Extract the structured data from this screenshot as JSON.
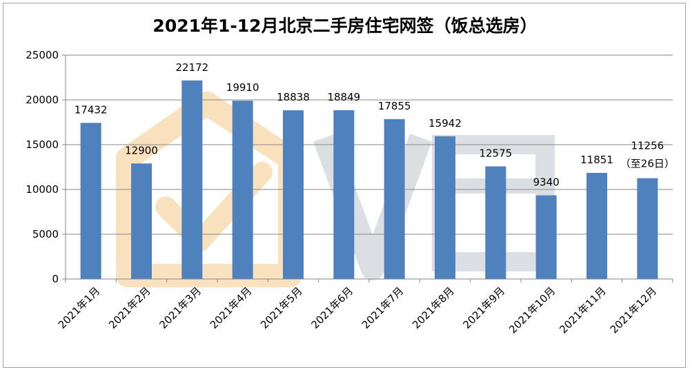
{
  "chart_data": {
    "type": "bar",
    "title": "2021年1-12月北京二手房住宅网签（饭总选房）",
    "categories": [
      "2021年1月",
      "2021年2月",
      "2021年3月",
      "2021年4月",
      "2021年5月",
      "2021年6月",
      "2021年7月",
      "2021年8月",
      "2021年9月",
      "2021年10月",
      "2021年11月",
      "2021年12月"
    ],
    "values": [
      17432,
      12900,
      22172,
      19910,
      18838,
      18849,
      17855,
      15942,
      12575,
      9340,
      11851,
      11256
    ],
    "data_labels": [
      "17432",
      "12900",
      "22172",
      "19910",
      "18838",
      "18849",
      "17855",
      "15942",
      "12575",
      "9340",
      "11851",
      "11256"
    ],
    "annotations": [
      {
        "category": "2021年12月",
        "text": "（至26日）"
      }
    ],
    "yticks": [
      0,
      5000,
      10000,
      15000,
      20000,
      25000
    ],
    "ylim": [
      0,
      25000
    ],
    "grid": true,
    "legend": "none",
    "xlabel": "",
    "ylabel": "",
    "colors": {
      "bar": "#4f81bd",
      "grid": "#868686",
      "axis": "#868686",
      "watermark_orange": "#f8d9a8",
      "watermark_gray": "#c8ccd4"
    }
  }
}
